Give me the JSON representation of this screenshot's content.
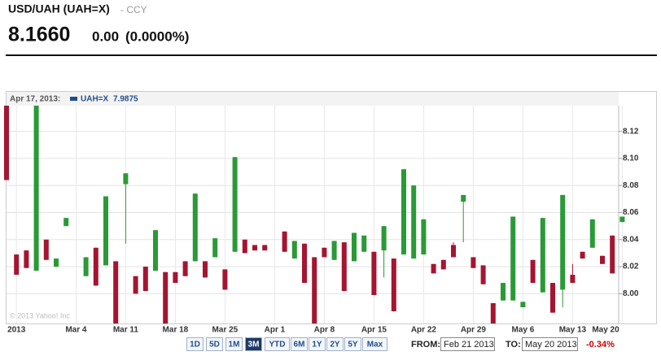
{
  "header": {
    "title": "USD/UAH (UAH=X)",
    "exchange": "- CCY",
    "price": "8.1660",
    "change": "0.00",
    "change_pct": "(0.0000%)"
  },
  "chart_data": {
    "type": "candlestick",
    "legend_date": "Apr 17, 2013:",
    "legend_name": "UAH=X",
    "legend_value": 7.9875,
    "legend_color": "#1f4e8c",
    "watermark": "© 2013 Yahoo! Inc",
    "up_color": "#2a9a36",
    "down_color": "#a51530",
    "categories": [
      null,
      "2013",
      null,
      null,
      null,
      null,
      null,
      "Mar 4",
      null,
      null,
      null,
      null,
      "Mar 11",
      null,
      null,
      null,
      null,
      "Mar 18",
      null,
      null,
      null,
      null,
      "Mar 25",
      null,
      null,
      null,
      null,
      "Apr 1",
      null,
      null,
      null,
      null,
      "Apr 8",
      null,
      null,
      null,
      null,
      "Apr 15",
      null,
      null,
      null,
      null,
      "Apr 22",
      null,
      null,
      null,
      null,
      "Apr 29",
      null,
      null,
      null,
      null,
      "May 6",
      null,
      null,
      null,
      null,
      "May 13",
      null,
      null,
      null,
      null,
      "May 20"
    ],
    "open": [
      8.139,
      8.029,
      8.032,
      8.017,
      8.04,
      8.02,
      8.05,
      null,
      8.013,
      8.034,
      8.021,
      8.024,
      8.081,
      8.013,
      8.02,
      8.017,
      8.016,
      8.016,
      8.024,
      8.024,
      8.024,
      8.027,
      8.018,
      8.031,
      8.04,
      8.036,
      8.036,
      null,
      8.046,
      8.026,
      8.037,
      8.027,
      8.034,
      8.025,
      8.038,
      8.024,
      8.031,
      8.031,
      8.032,
      8.026,
      8.029,
      8.026,
      8.029,
      8.022,
      8.025,
      8.036,
      8.068,
      8.027,
      8.021,
      7.993,
      7.995,
      7.995,
      7.99,
      8.025,
      8.001,
      8.008,
      8.003,
      8.014,
      8.031,
      8.034,
      8.028,
      8.043,
      8.053
    ],
    "close": [
      8.084,
      8.014,
      8.019,
      8.139,
      8.025,
      8.026,
      8.056,
      null,
      8.027,
      8.006,
      8.072,
      7.978,
      8.089,
      8.0,
      8.002,
      8.047,
      7.978,
      8.008,
      8.013,
      8.074,
      8.012,
      8.041,
      8.003,
      8.101,
      8.03,
      8.032,
      8.032,
      null,
      8.031,
      8.039,
      8.008,
      7.978,
      8.027,
      8.039,
      8.002,
      8.045,
      8.043,
      7.999,
      8.05,
      7.987,
      8.092,
      8.08,
      8.055,
      8.015,
      8.018,
      8.027,
      8.073,
      8.019,
      8.007,
      7.978,
      8.008,
      8.057,
      7.994,
      8.008,
      8.056,
      7.986,
      8.073,
      8.008,
      8.026,
      8.055,
      8.022,
      8.015,
      8.057
    ],
    "high": [
      8.139,
      8.029,
      8.032,
      8.139,
      8.04,
      8.026,
      8.056,
      null,
      8.027,
      8.034,
      8.072,
      8.024,
      8.089,
      8.013,
      8.02,
      8.047,
      8.016,
      8.016,
      8.024,
      8.074,
      8.024,
      8.041,
      8.018,
      8.101,
      8.04,
      8.036,
      8.036,
      null,
      8.046,
      8.039,
      8.037,
      8.027,
      8.034,
      8.039,
      8.038,
      8.045,
      8.043,
      8.031,
      8.05,
      8.026,
      8.092,
      8.08,
      8.055,
      8.022,
      8.025,
      8.038,
      8.073,
      8.027,
      8.021,
      7.993,
      8.008,
      8.057,
      7.994,
      8.025,
      8.056,
      8.008,
      8.073,
      8.022,
      8.031,
      8.055,
      8.028,
      8.043,
      8.057
    ],
    "low": [
      8.084,
      8.014,
      8.019,
      8.017,
      8.025,
      8.02,
      8.05,
      null,
      8.013,
      8.006,
      8.021,
      7.978,
      8.037,
      8.0,
      8.002,
      8.017,
      7.978,
      8.008,
      8.013,
      8.024,
      8.012,
      8.027,
      8.003,
      8.031,
      8.03,
      8.032,
      8.032,
      null,
      8.031,
      8.026,
      8.008,
      7.978,
      8.027,
      8.025,
      8.002,
      8.024,
      8.031,
      7.999,
      8.012,
      7.987,
      8.029,
      8.026,
      8.029,
      8.015,
      8.018,
      8.027,
      8.038,
      8.019,
      8.007,
      7.978,
      7.995,
      7.995,
      7.99,
      8.008,
      8.001,
      7.986,
      7.99,
      8.008,
      8.026,
      8.034,
      8.022,
      8.015,
      8.053
    ],
    "ylim": [
      7.978,
      8.139
    ],
    "yticks": [
      {
        "value": 8,
        "label": "8.00"
      },
      8.02,
      8.04,
      8.06,
      8.08,
      {
        "value": 8.1,
        "label": "8.10"
      },
      8.12
    ],
    "grid": true
  },
  "controls": {
    "ranges": [
      "1D",
      "5D",
      "1M",
      "3M",
      "YTD",
      "6M",
      "1Y",
      "2Y",
      "5Y",
      "Max"
    ],
    "active_range": 3,
    "from_label": "FROM:",
    "from": "Feb 21 2013",
    "to_label": "TO:",
    "to": "May 20 2013",
    "range_change": "-0.34%"
  }
}
